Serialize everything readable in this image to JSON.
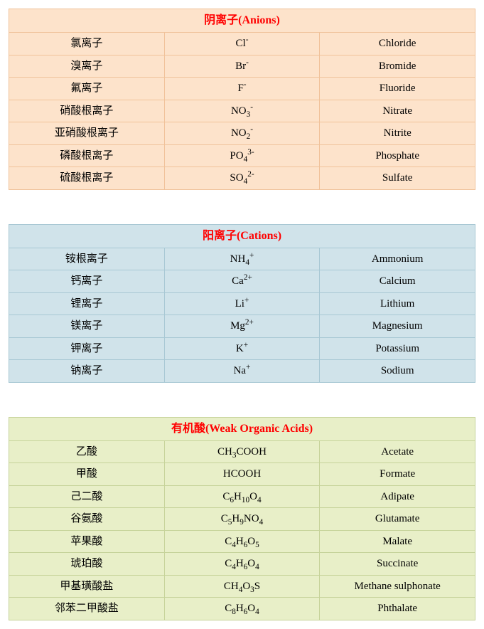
{
  "page": {
    "background_color": "#ffffff",
    "font_family": "Times New Roman, SimSun, serif",
    "base_fontsize": 15
  },
  "tables": [
    {
      "id": "anions",
      "header": {
        "cn": "阴离子",
        "en": "(Anions)"
      },
      "header_color": "#ff0000",
      "header_fontsize": 16,
      "bg_color": "#fde3cb",
      "border_color": "#f0c29a",
      "text_color": "#000000",
      "col_widths": [
        "33.33%",
        "33.33%",
        "33.33%"
      ],
      "rows": [
        {
          "cn": "氯离子",
          "formula": "Cl<sup>-</sup>",
          "en": "Chloride"
        },
        {
          "cn": "溴离子",
          "formula": "Br<sup>-</sup>",
          "en": "Bromide"
        },
        {
          "cn": "氟离子",
          "formula": "F<sup>-</sup>",
          "en": "Fluoride"
        },
        {
          "cn": "硝酸根离子",
          "formula": "NO<sub>3</sub><sup>-</sup>",
          "en": "Nitrate"
        },
        {
          "cn": "亚硝酸根离子",
          "formula": "NO<sub>2</sub><sup>-</sup>",
          "en": "Nitrite"
        },
        {
          "cn": "磷酸根离子",
          "formula": "PO<sub>4</sub><sup>3-</sup>",
          "en": "Phosphate"
        },
        {
          "cn": "硫酸根离子",
          "formula": "SO<sub>4</sub><sup>2-</sup>",
          "en": "Sulfate"
        }
      ]
    },
    {
      "id": "cations",
      "header": {
        "cn": "阳离子",
        "en": "(Cations)"
      },
      "header_color": "#ff0000",
      "header_fontsize": 16,
      "bg_color": "#d0e3ea",
      "border_color": "#a8c8d4",
      "text_color": "#000000",
      "col_widths": [
        "33.33%",
        "33.33%",
        "33.33%"
      ],
      "rows": [
        {
          "cn": "铵根离子",
          "formula": "NH<sub>4</sub><sup>+</sup>",
          "en": "Ammonium"
        },
        {
          "cn": "钙离子",
          "formula": "Ca<sup>2+</sup>",
          "en": "Calcium"
        },
        {
          "cn": "锂离子",
          "formula": "Li<sup>+</sup>",
          "en": "Lithium"
        },
        {
          "cn": "镁离子",
          "formula": "Mg<sup>2+</sup>",
          "en": "Magnesium"
        },
        {
          "cn": "钾离子",
          "formula": "K<sup>+</sup>",
          "en": "Potassium"
        },
        {
          "cn": "钠离子",
          "formula": "Na<sup>+</sup>",
          "en": "Sodium"
        }
      ]
    },
    {
      "id": "organic-acids",
      "header": {
        "cn": "有机酸",
        "en": "(Weak Organic Acids)"
      },
      "header_color": "#ff0000",
      "header_fontsize": 16,
      "bg_color": "#e8efc8",
      "border_color": "#c6d39a",
      "text_color": "#000000",
      "col_widths": [
        "33.33%",
        "33.33%",
        "33.33%"
      ],
      "rows": [
        {
          "cn": "乙酸",
          "formula": "CH<sub>3</sub>COOH",
          "en": "Acetate"
        },
        {
          "cn": "甲酸",
          "formula": "HCOOH",
          "en": "Formate"
        },
        {
          "cn": "己二酸",
          "formula": "C<sub>6</sub>H<sub>10</sub>O<sub>4</sub>",
          "en": "Adipate"
        },
        {
          "cn": "谷氨酸",
          "formula": "C<sub>5</sub>H<sub>9</sub>NO<sub>4</sub>",
          "en": "Glutamate"
        },
        {
          "cn": "苹果酸",
          "formula": "C<sub>4</sub>H<sub>6</sub>O<sub>5</sub>",
          "en": "Malate"
        },
        {
          "cn": "琥珀酸",
          "formula": "C<sub>4</sub>H<sub>6</sub>O<sub>4</sub>",
          "en": "Succinate"
        },
        {
          "cn": "甲基璜酸盐",
          "formula": "CH<sub>4</sub>O<sub>3</sub>S",
          "en": "Methane sulphonate"
        },
        {
          "cn": "邻苯二甲酸盐",
          "formula": "C<sub>8</sub>H<sub>6</sub>O<sub>4</sub>",
          "en": "Phthalate"
        }
      ]
    }
  ]
}
